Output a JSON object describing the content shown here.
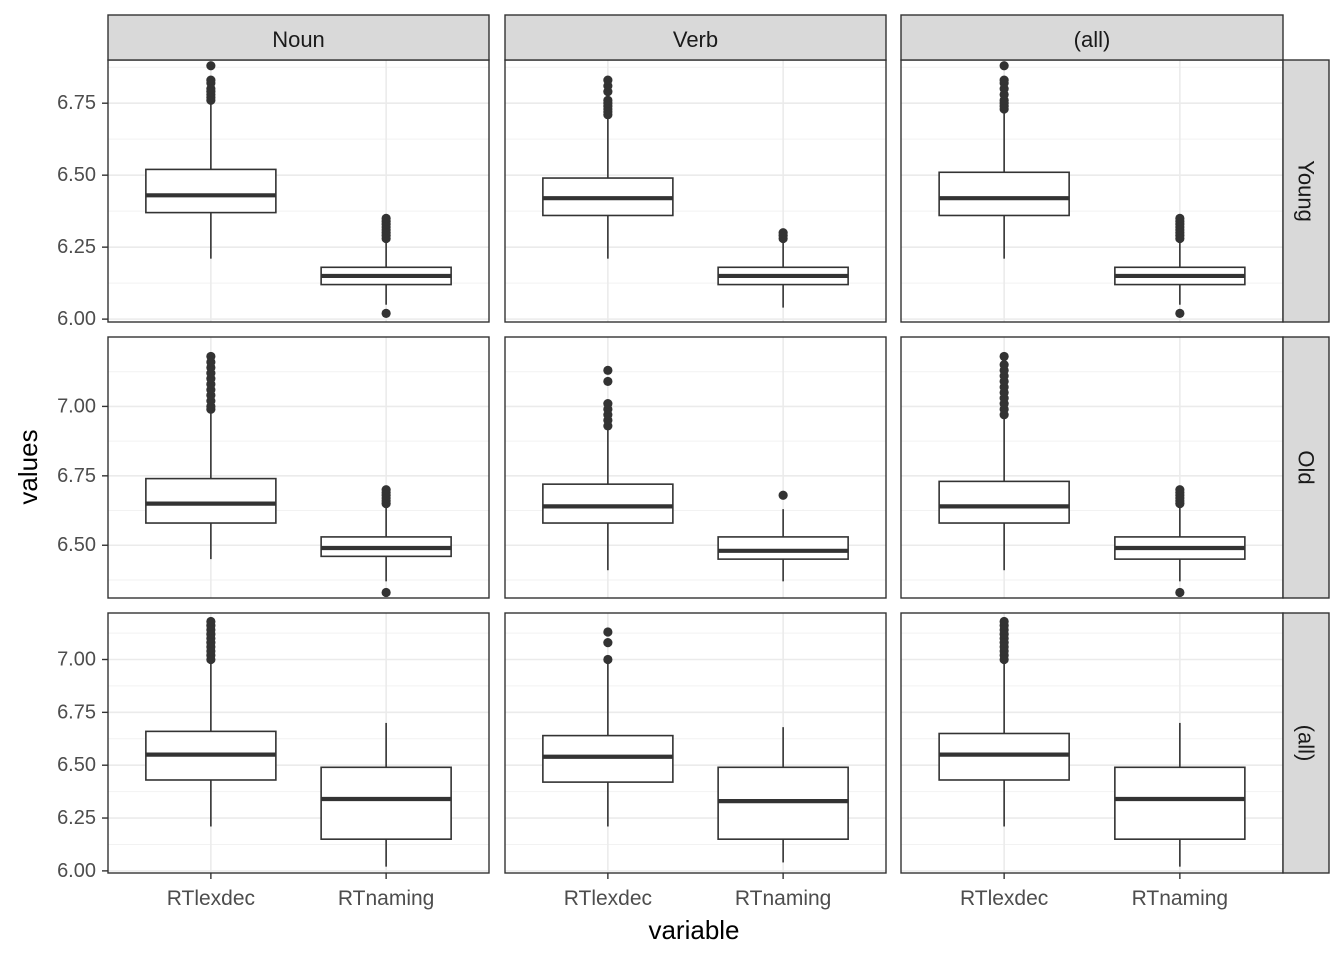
{
  "chart_data": {
    "type": "boxplot",
    "xlabel": "variable",
    "ylabel": "values",
    "categories": [
      "RTlexdec",
      "RTnaming"
    ],
    "facet_columns": [
      "Noun",
      "Verb",
      "(all)"
    ],
    "facet_rows": [
      "Young",
      "Old",
      "(all)"
    ],
    "grid": true,
    "row_axes": [
      {
        "ylim": [
          5.99,
          6.9
        ],
        "ticks": [
          6.0,
          6.25,
          6.5,
          6.75
        ],
        "tick_labels": [
          "6.00",
          "6.25",
          "6.50",
          "6.75"
        ]
      },
      {
        "ylim": [
          6.31,
          7.25
        ],
        "ticks": [
          6.5,
          6.75,
          7.0
        ],
        "tick_labels": [
          "6.50",
          "6.75",
          "7.00"
        ]
      },
      {
        "ylim": [
          5.99,
          7.22
        ],
        "ticks": [
          6.0,
          6.25,
          6.5,
          6.75,
          7.0
        ],
        "tick_labels": [
          "6.00",
          "6.25",
          "6.50",
          "6.75",
          "7.00"
        ]
      }
    ],
    "panels": [
      [
        [
          {
            "whisker_low": 6.21,
            "q1": 6.37,
            "median": 6.43,
            "q3": 6.52,
            "whisker_high": 6.75,
            "outliers": [
              6.76,
              6.77,
              6.78,
              6.79,
              6.8,
              6.82,
              6.83,
              6.88
            ]
          },
          {
            "whisker_low": 6.05,
            "q1": 6.12,
            "median": 6.15,
            "q3": 6.18,
            "whisker_high": 6.27,
            "outliers": [
              6.02,
              6.28,
              6.29,
              6.3,
              6.31,
              6.32,
              6.33,
              6.34,
              6.35
            ]
          }
        ],
        [
          {
            "whisker_low": 6.21,
            "q1": 6.36,
            "median": 6.42,
            "q3": 6.49,
            "whisker_high": 6.7,
            "outliers": [
              6.71,
              6.72,
              6.73,
              6.74,
              6.75,
              6.76,
              6.79,
              6.81,
              6.83
            ]
          },
          {
            "whisker_low": 6.04,
            "q1": 6.12,
            "median": 6.15,
            "q3": 6.18,
            "whisker_high": 6.27,
            "outliers": [
              6.28,
              6.29,
              6.3
            ]
          }
        ],
        [
          {
            "whisker_low": 6.21,
            "q1": 6.36,
            "median": 6.42,
            "q3": 6.51,
            "whisker_high": 6.72,
            "outliers": [
              6.73,
              6.74,
              6.75,
              6.76,
              6.78,
              6.8,
              6.82,
              6.83,
              6.88
            ]
          },
          {
            "whisker_low": 6.05,
            "q1": 6.12,
            "median": 6.15,
            "q3": 6.18,
            "whisker_high": 6.27,
            "outliers": [
              6.02,
              6.28,
              6.29,
              6.3,
              6.31,
              6.32,
              6.33,
              6.34,
              6.35
            ]
          }
        ]
      ],
      [
        [
          {
            "whisker_low": 6.45,
            "q1": 6.58,
            "median": 6.65,
            "q3": 6.74,
            "whisker_high": 6.98,
            "outliers": [
              6.99,
              7.0,
              7.02,
              7.04,
              7.06,
              7.08,
              7.1,
              7.12,
              7.14,
              7.16,
              7.18
            ]
          },
          {
            "whisker_low": 6.37,
            "q1": 6.46,
            "median": 6.49,
            "q3": 6.53,
            "whisker_high": 6.64,
            "outliers": [
              6.33,
              6.65,
              6.66,
              6.67,
              6.68,
              6.69,
              6.7
            ]
          }
        ],
        [
          {
            "whisker_low": 6.41,
            "q1": 6.58,
            "median": 6.64,
            "q3": 6.72,
            "whisker_high": 6.92,
            "outliers": [
              6.93,
              6.95,
              6.97,
              6.99,
              7.01,
              7.09,
              7.13
            ]
          },
          {
            "whisker_low": 6.37,
            "q1": 6.45,
            "median": 6.48,
            "q3": 6.53,
            "whisker_high": 6.63,
            "outliers": [
              6.68
            ]
          }
        ],
        [
          {
            "whisker_low": 6.41,
            "q1": 6.58,
            "median": 6.64,
            "q3": 6.73,
            "whisker_high": 6.96,
            "outliers": [
              6.97,
              6.99,
              7.01,
              7.03,
              7.05,
              7.07,
              7.09,
              7.11,
              7.13,
              7.15,
              7.18
            ]
          },
          {
            "whisker_low": 6.37,
            "q1": 6.45,
            "median": 6.49,
            "q3": 6.53,
            "whisker_high": 6.64,
            "outliers": [
              6.33,
              6.65,
              6.66,
              6.67,
              6.68,
              6.69,
              6.7
            ]
          }
        ]
      ],
      [
        [
          {
            "whisker_low": 6.21,
            "q1": 6.43,
            "median": 6.55,
            "q3": 6.66,
            "whisker_high": 6.98,
            "outliers": [
              7.0,
              7.02,
              7.04,
              7.06,
              7.08,
              7.1,
              7.12,
              7.14,
              7.16,
              7.18
            ]
          },
          {
            "whisker_low": 6.02,
            "q1": 6.15,
            "median": 6.34,
            "q3": 6.49,
            "whisker_high": 6.7,
            "outliers": []
          }
        ],
        [
          {
            "whisker_low": 6.21,
            "q1": 6.42,
            "median": 6.54,
            "q3": 6.64,
            "whisker_high": 6.99,
            "outliers": [
              7.0,
              7.08,
              7.13
            ]
          },
          {
            "whisker_low": 6.04,
            "q1": 6.15,
            "median": 6.33,
            "q3": 6.49,
            "whisker_high": 6.68,
            "outliers": []
          }
        ],
        [
          {
            "whisker_low": 6.21,
            "q1": 6.43,
            "median": 6.55,
            "q3": 6.65,
            "whisker_high": 6.98,
            "outliers": [
              7.0,
              7.02,
              7.04,
              7.06,
              7.08,
              7.1,
              7.12,
              7.14,
              7.16,
              7.18
            ]
          },
          {
            "whisker_low": 6.02,
            "q1": 6.15,
            "median": 6.34,
            "q3": 6.49,
            "whisker_high": 6.7,
            "outliers": []
          }
        ]
      ]
    ]
  }
}
